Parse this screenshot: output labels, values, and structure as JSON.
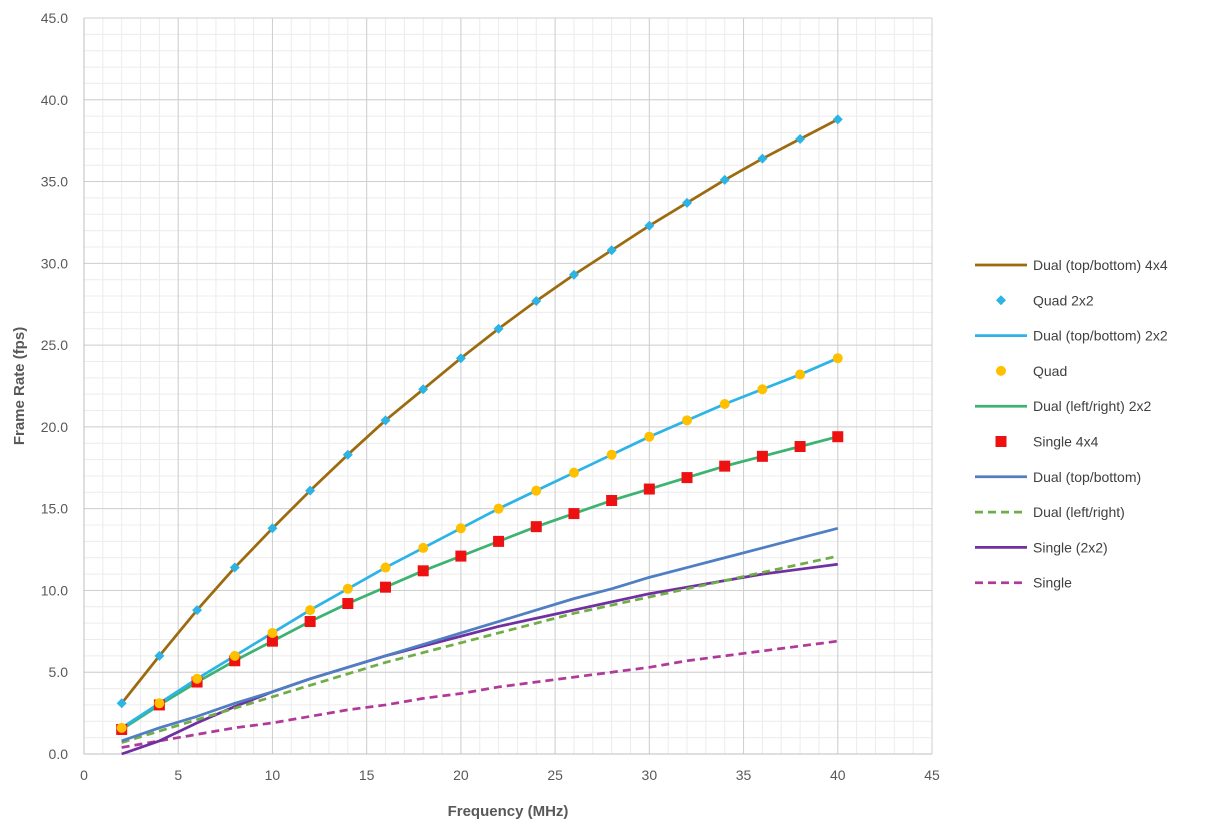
{
  "chart_data": {
    "type": "line",
    "xlabel": "Frequency (MHz)",
    "ylabel": "Frame Rate (fps)",
    "xlim": [
      0,
      45
    ],
    "ylim": [
      0,
      45
    ],
    "x_major_step": 5,
    "x_minor_step": 1,
    "y_major_step": 5,
    "y_minor_step": 1,
    "x_ticks": [
      "0",
      "5",
      "10",
      "15",
      "20",
      "25",
      "30",
      "35",
      "40",
      "45"
    ],
    "y_ticks": [
      "0.0",
      "5.0",
      "10.0",
      "15.0",
      "20.0",
      "25.0",
      "30.0",
      "35.0",
      "40.0",
      "45.0"
    ],
    "grid": true,
    "legend_position": "right",
    "x": [
      2,
      4,
      6,
      8,
      10,
      12,
      14,
      16,
      18,
      20,
      22,
      24,
      26,
      28,
      30,
      32,
      34,
      36,
      38,
      40
    ],
    "series": [
      {
        "name": "Dual (top/bottom) 4x4",
        "style": "line",
        "color": "#9c6b0f",
        "values": [
          3.1,
          6.0,
          8.8,
          11.4,
          13.8,
          16.1,
          18.3,
          20.4,
          22.3,
          24.2,
          26.0,
          27.7,
          29.3,
          30.8,
          32.3,
          33.7,
          35.1,
          36.4,
          37.6,
          38.8
        ]
      },
      {
        "name": "Quad 2x2",
        "style": "marker",
        "marker": "diamond",
        "color": "#2cb4e6",
        "values": [
          3.1,
          6.0,
          8.8,
          11.4,
          13.8,
          16.1,
          18.3,
          20.4,
          22.3,
          24.2,
          26.0,
          27.7,
          29.3,
          30.8,
          32.3,
          33.7,
          35.1,
          36.4,
          37.6,
          38.8
        ]
      },
      {
        "name": "Dual (top/bottom) 2x2",
        "style": "line",
        "color": "#2cb4e6",
        "values": [
          1.6,
          3.1,
          4.6,
          6.0,
          7.4,
          8.8,
          10.1,
          11.4,
          12.6,
          13.8,
          15.0,
          16.1,
          17.2,
          18.3,
          19.4,
          20.4,
          21.4,
          22.3,
          23.2,
          24.2
        ]
      },
      {
        "name": "Quad",
        "style": "marker",
        "marker": "circle",
        "color": "#ffc000",
        "values": [
          1.6,
          3.1,
          4.6,
          6.0,
          7.4,
          8.8,
          10.1,
          11.4,
          12.6,
          13.8,
          15.0,
          16.1,
          17.2,
          18.3,
          19.4,
          20.4,
          21.4,
          22.3,
          23.2,
          24.2
        ]
      },
      {
        "name": "Dual (left/right) 2x2",
        "style": "line",
        "color": "#3cb371",
        "values": [
          1.5,
          3.0,
          4.4,
          5.7,
          6.9,
          8.1,
          9.2,
          10.2,
          11.2,
          12.1,
          13.0,
          13.9,
          14.7,
          15.5,
          16.2,
          16.9,
          17.6,
          18.2,
          18.8,
          19.4
        ]
      },
      {
        "name": "Single 4x4",
        "style": "marker",
        "marker": "square",
        "color": "#ee1111",
        "values": [
          1.5,
          3.0,
          4.4,
          5.7,
          6.9,
          8.1,
          9.2,
          10.2,
          11.2,
          12.1,
          13.0,
          13.9,
          14.7,
          15.5,
          16.2,
          16.9,
          17.6,
          18.2,
          18.8,
          19.4
        ]
      },
      {
        "name": "Dual (top/bottom)",
        "style": "line",
        "color": "#4f7ec2",
        "values": [
          0.8,
          1.6,
          2.3,
          3.1,
          3.8,
          4.6,
          5.3,
          6.0,
          6.7,
          7.4,
          8.1,
          8.8,
          9.5,
          10.1,
          10.8,
          11.4,
          12.0,
          12.6,
          13.2,
          13.8
        ]
      },
      {
        "name": "Dual (left/right)",
        "style": "dashed",
        "color": "#70ad47",
        "values": [
          0.7,
          1.4,
          2.1,
          2.8,
          3.5,
          4.2,
          4.9,
          5.6,
          6.2,
          6.8,
          7.4,
          8.0,
          8.6,
          9.1,
          9.6,
          10.1,
          10.6,
          11.1,
          11.6,
          12.1
        ]
      },
      {
        "name": "Single (2x2)",
        "style": "line",
        "color": "#7030a0",
        "values": [
          0.0,
          0.8,
          1.9,
          2.9,
          3.8,
          4.6,
          5.3,
          6.0,
          6.6,
          7.2,
          7.8,
          8.3,
          8.8,
          9.3,
          9.8,
          10.2,
          10.6,
          11.0,
          11.3,
          11.6
        ]
      },
      {
        "name": "Single",
        "style": "dashed",
        "color": "#b03a9a",
        "values": [
          0.4,
          0.8,
          1.2,
          1.6,
          1.9,
          2.3,
          2.7,
          3.0,
          3.4,
          3.7,
          4.1,
          4.4,
          4.7,
          5.0,
          5.3,
          5.7,
          6.0,
          6.3,
          6.6,
          6.9
        ]
      }
    ]
  }
}
